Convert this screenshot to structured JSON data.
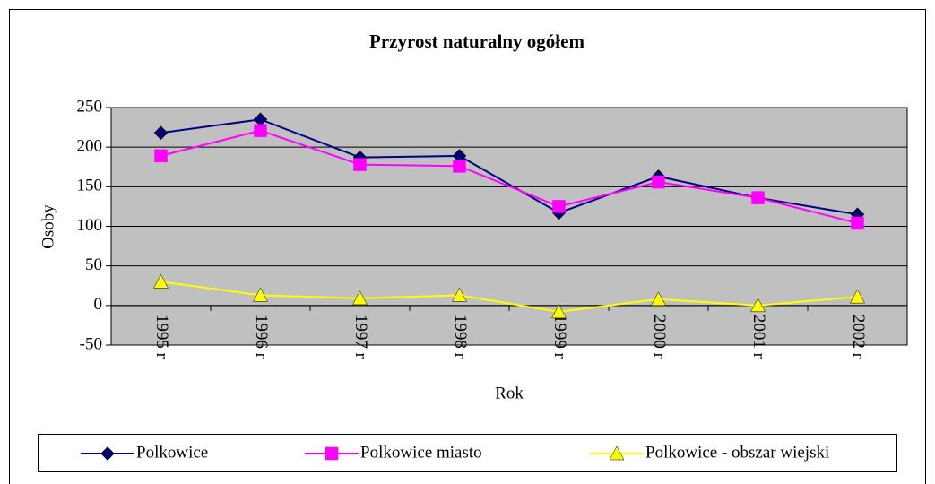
{
  "chart_data": {
    "type": "line",
    "title": "Przyrost naturalny ogółem",
    "y_label": "Osoby",
    "x_label": "Rok",
    "categories": [
      "1995 r",
      "1996 r",
      "1997 r",
      "1998 r",
      "1999 r",
      "2000 r",
      "2001 r",
      "2002 r"
    ],
    "series": [
      {
        "name": "Polkowice",
        "color": "#000080",
        "marker": "diamond",
        "values": [
          218,
          235,
          187,
          189,
          117,
          163,
          136,
          115
        ]
      },
      {
        "name": "Polkowice miasto",
        "color": "#ff00ff",
        "marker": "square",
        "values": [
          189,
          221,
          178,
          176,
          125,
          156,
          136,
          104
        ]
      },
      {
        "name": "Polkowice - obszar wiejski",
        "color": "#ffff00",
        "marker": "triangle",
        "values": [
          30,
          13,
          9,
          13,
          -8,
          8,
          0,
          11
        ]
      }
    ],
    "ylim": [
      -50,
      250
    ],
    "yticks": [
      -50,
      0,
      50,
      100,
      150,
      200,
      250
    ],
    "grid": true,
    "plot_background": "#c0c0c0",
    "legend": "bottom"
  }
}
